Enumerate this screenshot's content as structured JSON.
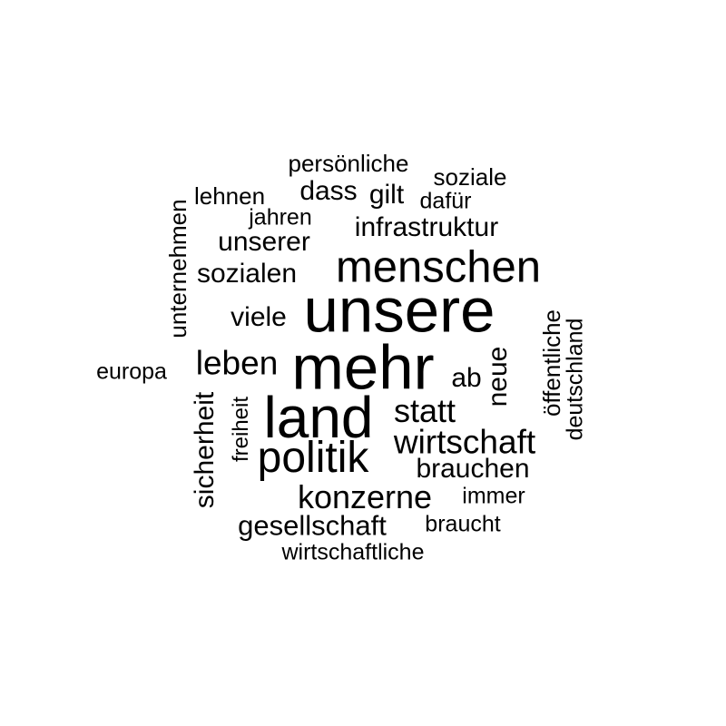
{
  "wordcloud": {
    "text_color": "#000000",
    "background": "#ffffff",
    "words": {
      "unsere": "unsere",
      "mehr": "mehr",
      "land": "land",
      "menschen": "menschen",
      "politik": "politik",
      "wirtschaft": "wirtschaft",
      "konzerne": "konzerne",
      "leben": "leben",
      "statt": "statt",
      "infrastruktur": "infrastruktur",
      "gesellschaft": "gesellschaft",
      "sozialen": "sozialen",
      "unserer": "unserer",
      "brauchen": "brauchen",
      "dass": "dass",
      "gilt": "gilt",
      "persoenliche": "persönliche",
      "soziale": "soziale",
      "lehnen": "lehnen",
      "dafuer": "dafür",
      "jahren": "jahren",
      "viele": "viele",
      "ab": "ab",
      "immer": "immer",
      "braucht": "braucht",
      "wirtschaftliche": "wirtschaftliche",
      "europa": "europa",
      "unternehmen": "unternehmen",
      "sicherheit": "sicherheit",
      "freiheit": "freiheit",
      "neue": "neue",
      "oeffentliche": "öffentliche",
      "deutschland": "deutschland"
    }
  }
}
